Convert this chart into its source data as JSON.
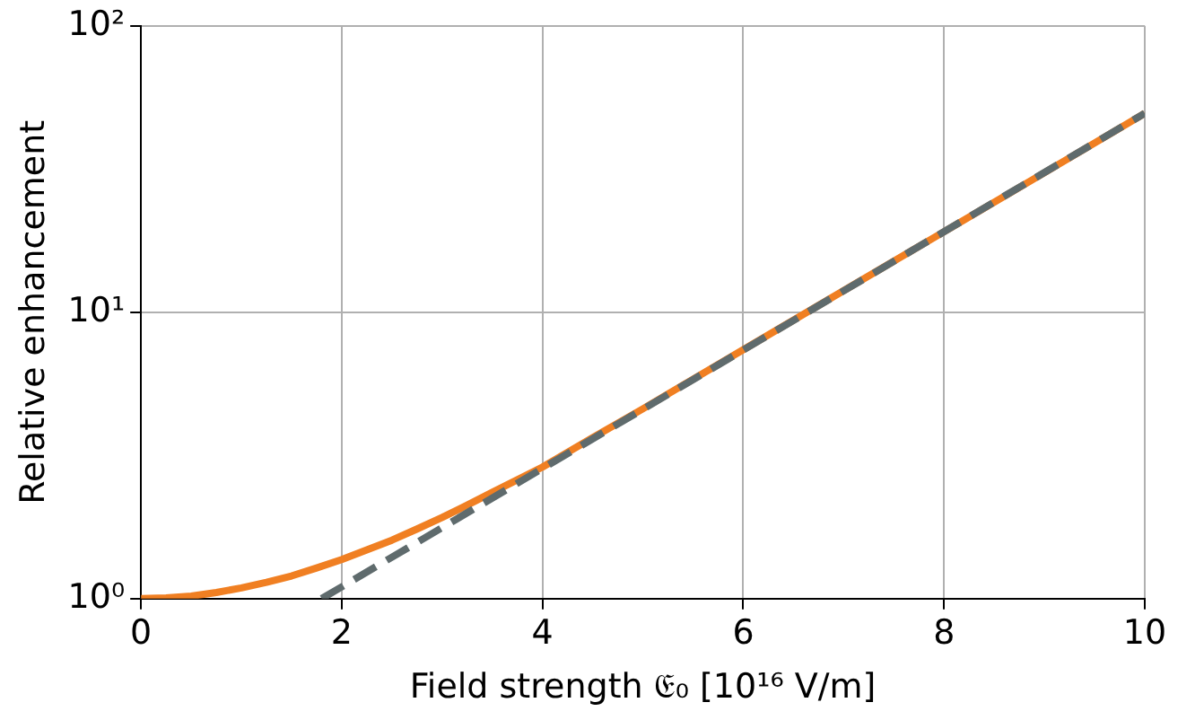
{
  "chart_data": {
    "type": "line",
    "xlabel": "Field strength 𝔈₀ [10¹⁶ V/m]",
    "ylabel": "Relative enhancement",
    "log": "y",
    "grid": true,
    "legend": false,
    "xlim": [
      0,
      10
    ],
    "ylim": [
      1,
      100
    ],
    "xticks": [
      0,
      2,
      4,
      6,
      8,
      10
    ],
    "yticks": [
      {
        "value": 1,
        "label": "10⁰"
      },
      {
        "value": 10,
        "label": "10¹"
      },
      {
        "value": 100,
        "label": "10²"
      }
    ],
    "series": [
      {
        "color": "#f07f22",
        "line_style": "solid",
        "x": [
          0,
          0.25,
          0.5,
          0.75,
          1,
          1.25,
          1.5,
          1.75,
          2,
          2.25,
          2.5,
          2.75,
          3,
          3.25,
          3.5,
          3.75,
          4,
          4.5,
          5,
          6,
          7,
          8,
          9,
          10
        ],
        "values": [
          1,
          1.005,
          1.02,
          1.05,
          1.09,
          1.14,
          1.2,
          1.28,
          1.37,
          1.48,
          1.6,
          1.75,
          1.92,
          2.12,
          2.35,
          2.6,
          2.88,
          3.65,
          4.6,
          7.4,
          11.9,
          19.1,
          30.7,
          49.5
        ]
      },
      {
        "color": "#5f6b6d",
        "line_style": "dashed",
        "x": [
          1.8,
          10
        ],
        "values": [
          1,
          49.5
        ]
      }
    ]
  }
}
